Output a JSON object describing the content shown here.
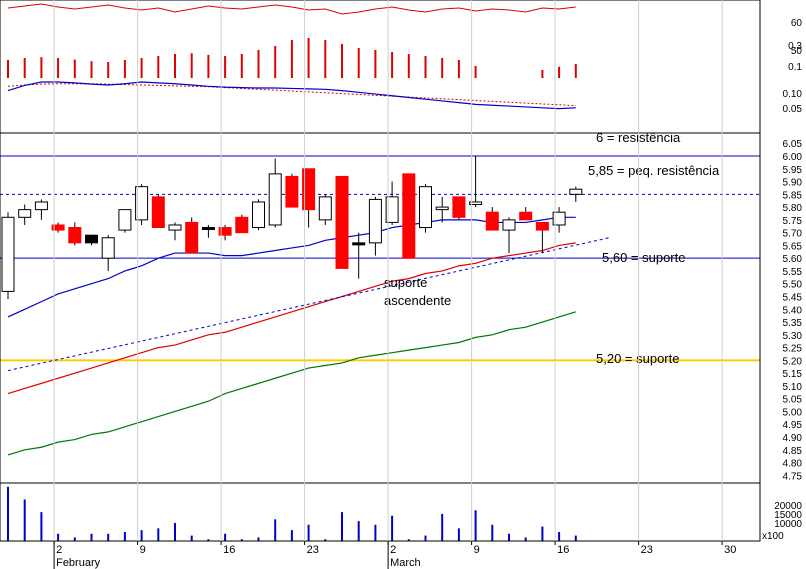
{
  "chart_data": {
    "type": "candlestick",
    "title": "",
    "price_panel": {
      "ylim": [
        4.72,
        6.09
      ],
      "y_ticks": [
        "6.05",
        "6.00",
        "5.95",
        "5.90",
        "5.85",
        "5.80",
        "5.75",
        "5.70",
        "5.65",
        "5.60",
        "5.55",
        "5.50",
        "5.45",
        "5.40",
        "5.35",
        "5.30",
        "5.25",
        "5.20",
        "5.15",
        "5.10",
        "5.05",
        "5.00",
        "4.95",
        "4.90",
        "4.85",
        "4.80",
        "4.75"
      ],
      "candles": [
        {
          "open": 5.47,
          "high": 5.78,
          "low": 5.44,
          "close": 5.76,
          "color": "white"
        },
        {
          "open": 5.76,
          "high": 5.81,
          "low": 5.73,
          "close": 5.79,
          "color": "white"
        },
        {
          "open": 5.79,
          "high": 5.83,
          "low": 5.75,
          "close": 5.82,
          "color": "white"
        },
        {
          "open": 5.71,
          "high": 5.74,
          "low": 5.7,
          "close": 5.73,
          "color": "red"
        },
        {
          "open": 5.72,
          "high": 5.74,
          "low": 5.65,
          "close": 5.66,
          "color": "red"
        },
        {
          "open": 5.69,
          "high": 5.69,
          "low": 5.65,
          "close": 5.66,
          "color": "black"
        },
        {
          "open": 5.6,
          "high": 5.69,
          "low": 5.55,
          "close": 5.68,
          "color": "white"
        },
        {
          "open": 5.71,
          "high": 5.79,
          "low": 5.7,
          "close": 5.79,
          "color": "white"
        },
        {
          "open": 5.75,
          "high": 5.89,
          "low": 5.73,
          "close": 5.88,
          "color": "white"
        },
        {
          "open": 5.84,
          "high": 5.85,
          "low": 5.72,
          "close": 5.72,
          "color": "red"
        },
        {
          "open": 5.71,
          "high": 5.74,
          "low": 5.67,
          "close": 5.73,
          "color": "white"
        },
        {
          "open": 5.74,
          "high": 5.76,
          "low": 5.62,
          "close": 5.62,
          "color": "red"
        },
        {
          "open": 5.72,
          "high": 5.73,
          "low": 5.68,
          "close": 5.72,
          "color": "black"
        },
        {
          "open": 5.72,
          "high": 5.73,
          "low": 5.67,
          "close": 5.69,
          "color": "red"
        },
        {
          "open": 5.76,
          "high": 5.77,
          "low": 5.7,
          "close": 5.7,
          "color": "red"
        },
        {
          "open": 5.72,
          "high": 5.83,
          "low": 5.71,
          "close": 5.82,
          "color": "white"
        },
        {
          "open": 5.73,
          "high": 5.99,
          "low": 5.72,
          "close": 5.93,
          "color": "white"
        },
        {
          "open": 5.92,
          "high": 5.93,
          "low": 5.8,
          "close": 5.8,
          "color": "red"
        },
        {
          "open": 5.95,
          "high": 5.95,
          "low": 5.72,
          "close": 5.79,
          "color": "red"
        },
        {
          "open": 5.75,
          "high": 5.85,
          "low": 5.73,
          "close": 5.84,
          "color": "white"
        },
        {
          "open": 5.92,
          "high": 5.92,
          "low": 5.56,
          "close": 5.56,
          "color": "red"
        },
        {
          "open": 5.66,
          "high": 5.7,
          "low": 5.52,
          "close": 5.66,
          "color": "black"
        },
        {
          "open": 5.66,
          "high": 5.84,
          "low": 5.61,
          "close": 5.83,
          "color": "white"
        },
        {
          "open": 5.74,
          "high": 5.9,
          "low": 5.73,
          "close": 5.84,
          "color": "white"
        },
        {
          "open": 5.93,
          "high": 5.93,
          "low": 5.6,
          "close": 5.6,
          "color": "red"
        },
        {
          "open": 5.72,
          "high": 5.89,
          "low": 5.7,
          "close": 5.88,
          "color": "white"
        },
        {
          "open": 5.8,
          "high": 5.84,
          "low": 5.74,
          "close": 5.79,
          "color": "white"
        },
        {
          "open": 5.84,
          "high": 5.84,
          "low": 5.75,
          "close": 5.76,
          "color": "red"
        },
        {
          "open": 5.82,
          "high": 6.0,
          "low": 5.8,
          "close": 5.81,
          "color": "white"
        },
        {
          "open": 5.78,
          "high": 5.8,
          "low": 5.71,
          "close": 5.71,
          "color": "red"
        },
        {
          "open": 5.71,
          "high": 5.76,
          "low": 5.62,
          "close": 5.75,
          "color": "white"
        },
        {
          "open": 5.78,
          "high": 5.8,
          "low": 5.75,
          "close": 5.75,
          "color": "red"
        },
        {
          "open": 5.74,
          "high": 5.74,
          "low": 5.62,
          "close": 5.71,
          "color": "red"
        },
        {
          "open": 5.73,
          "high": 5.8,
          "low": 5.7,
          "close": 5.78,
          "color": "white"
        },
        {
          "open": 5.85,
          "high": 5.88,
          "low": 5.82,
          "close": 5.87,
          "color": "white"
        }
      ],
      "moving_averages": [
        {
          "color": "#0000cc",
          "values": [
            5.37,
            5.4,
            5.43,
            5.46,
            5.48,
            5.5,
            5.52,
            5.55,
            5.57,
            5.6,
            5.62,
            5.62,
            5.62,
            5.61,
            5.61,
            5.62,
            5.63,
            5.64,
            5.65,
            5.67,
            5.68,
            5.69,
            5.7,
            5.72,
            5.73,
            5.74,
            5.75,
            5.75,
            5.75,
            5.74,
            5.74,
            5.74,
            5.75,
            5.76,
            5.76
          ]
        },
        {
          "color": "#dd0000",
          "values": [
            5.07,
            5.09,
            5.11,
            5.13,
            5.15,
            5.17,
            5.19,
            5.21,
            5.23,
            5.25,
            5.26,
            5.28,
            5.3,
            5.31,
            5.33,
            5.35,
            5.37,
            5.39,
            5.41,
            5.43,
            5.45,
            5.47,
            5.49,
            5.51,
            5.52,
            5.54,
            5.55,
            5.57,
            5.58,
            5.6,
            5.61,
            5.62,
            5.63,
            5.65,
            5.66
          ]
        },
        {
          "color": "#007700",
          "values": [
            4.83,
            4.85,
            4.86,
            4.88,
            4.89,
            4.91,
            4.92,
            4.94,
            4.96,
            4.98,
            5.0,
            5.02,
            5.04,
            5.07,
            5.09,
            5.11,
            5.13,
            5.15,
            5.17,
            5.18,
            5.19,
            5.21,
            5.22,
            5.23,
            5.24,
            5.25,
            5.26,
            5.27,
            5.29,
            5.3,
            5.32,
            5.33,
            5.35,
            5.37,
            5.39
          ]
        }
      ],
      "horizontal_lines": [
        {
          "value": 6.0,
          "color": "#0000cc",
          "style": "solid"
        },
        {
          "value": 5.85,
          "color": "#0000cc",
          "style": "dashed"
        },
        {
          "value": 5.6,
          "color": "#0000cc",
          "style": "solid"
        },
        {
          "value": 5.2,
          "color": "#ffcc00",
          "style": "solid"
        }
      ],
      "trendline": {
        "from": [
          0,
          5.16
        ],
        "to": [
          36,
          5.68
        ],
        "color": "#0000cc",
        "style": "dashed"
      },
      "annotations": [
        "6 = resistência",
        "5,85 = peq. resistência",
        "5,60 = suporte",
        "suporte",
        "ascendente",
        "5,20 = suporte"
      ]
    },
    "oscillator_panel": {
      "y_ticks": [
        "60",
        "50",
        "0.3",
        "0.1",
        "0.10",
        "0.05"
      ],
      "red_line": [
        8,
        6,
        4,
        7,
        9,
        7,
        5,
        8,
        10,
        8,
        12,
        9,
        6,
        8,
        9,
        7,
        5,
        7,
        10,
        9,
        14,
        12,
        9,
        7,
        10,
        12,
        9,
        8,
        11,
        9,
        10,
        12,
        8,
        9,
        7
      ],
      "histogram": [
        0.45,
        0.5,
        0.52,
        0.5,
        0.46,
        0.42,
        0.4,
        0.45,
        0.5,
        0.55,
        0.6,
        0.62,
        0.58,
        0.55,
        0.6,
        0.7,
        0.8,
        0.95,
        1,
        0.95,
        0.85,
        0.75,
        0.7,
        0.65,
        0.6,
        0.55,
        0.5,
        0.45,
        0.3,
        0,
        0,
        0,
        0.2,
        0.28,
        0.35
      ],
      "blue_line": [
        0.8,
        0.92,
        1.0,
        1.0,
        0.98,
        0.95,
        0.93,
        0.96,
        1.0,
        0.98,
        0.96,
        0.93,
        0.9,
        0.88,
        0.87,
        0.86,
        0.86,
        0.85,
        0.84,
        0.83,
        0.8,
        0.76,
        0.72,
        0.68,
        0.64,
        0.6,
        0.56,
        0.52,
        0.48,
        0.46,
        0.44,
        0.42,
        0.4,
        0.38,
        0.4
      ],
      "dashed_line": [
        0.9,
        0.93,
        0.95,
        0.96,
        0.96,
        0.96,
        0.95,
        0.94,
        0.93,
        0.92,
        0.91,
        0.9,
        0.89,
        0.87,
        0.85,
        0.83,
        0.81,
        0.79,
        0.77,
        0.75,
        0.73,
        0.71,
        0.69,
        0.67,
        0.65,
        0.63,
        0.61,
        0.59,
        0.57,
        0.55,
        0.53,
        0.51,
        0.49,
        0.47,
        0.45
      ]
    },
    "volume_panel": {
      "y_ticks": [
        "20000",
        "15000",
        "10000"
      ],
      "unit_label": "x100",
      "values": [
        30000,
        23000,
        16000,
        4000,
        2000,
        4000,
        4000,
        5000,
        6000,
        7000,
        10000,
        3000,
        1000,
        4000,
        1000,
        2000,
        12000,
        6000,
        9000,
        1000,
        16000,
        11000,
        9000,
        14000,
        1000,
        3000,
        15000,
        7000,
        17000,
        9000,
        4000,
        2000,
        8000,
        5000,
        3000
      ]
    },
    "x_ticks": [
      {
        "label": "2",
        "trading_index": 3
      },
      {
        "label": "9",
        "trading_index": 8
      },
      {
        "label": "16",
        "trading_index": 13
      },
      {
        "label": "23",
        "trading_index": 18
      },
      {
        "label": "2",
        "trading_index": 23
      },
      {
        "label": "9",
        "trading_index": 28
      },
      {
        "label": "16",
        "trading_index": 33
      },
      {
        "label": "23",
        "trading_index": 38
      },
      {
        "label": "30",
        "trading_index": 43
      }
    ],
    "month_labels": [
      {
        "label": "February",
        "trading_index": 3
      },
      {
        "label": "March",
        "trading_index": 23
      }
    ]
  }
}
